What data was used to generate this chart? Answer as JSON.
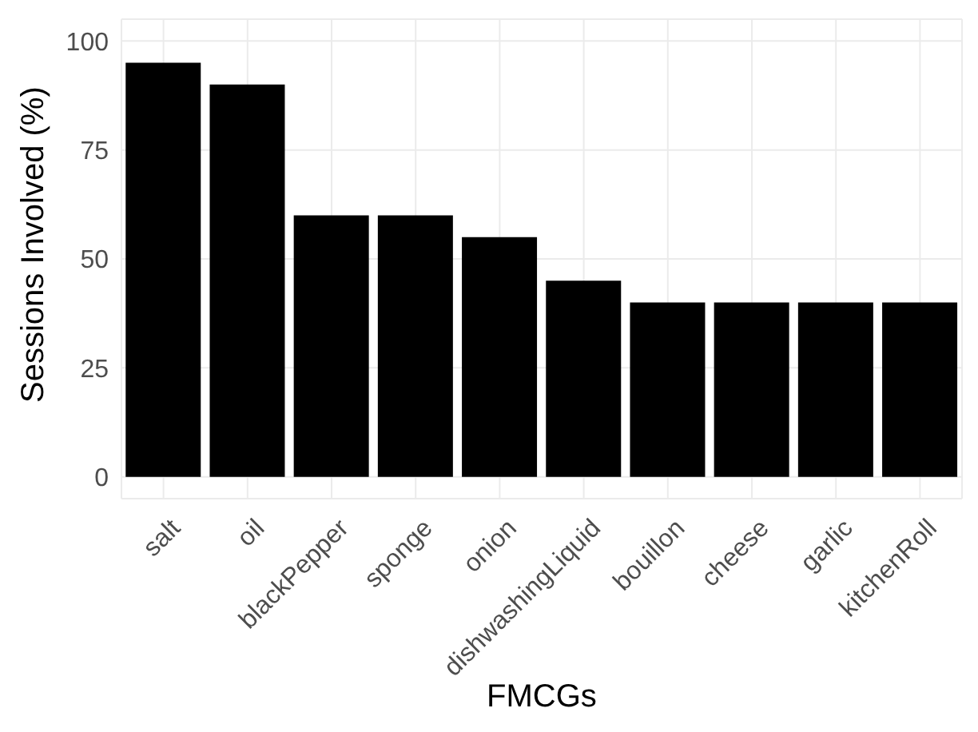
{
  "chart_data": {
    "type": "bar",
    "xlabel": "FMCGs",
    "ylabel": "Sessions Involved (%)",
    "categories": [
      "salt",
      "oil",
      "blackPepper",
      "sponge",
      "onion",
      "dishwashingLiquid",
      "bouillon",
      "cheese",
      "garlic",
      "kitchenRoll"
    ],
    "values": [
      95,
      90,
      60,
      60,
      55,
      45,
      40,
      40,
      40,
      40
    ],
    "color": "#000000",
    "ylim": [
      -5,
      105
    ],
    "yticks": [
      0,
      25,
      50,
      75,
      100
    ],
    "grid": true
  }
}
